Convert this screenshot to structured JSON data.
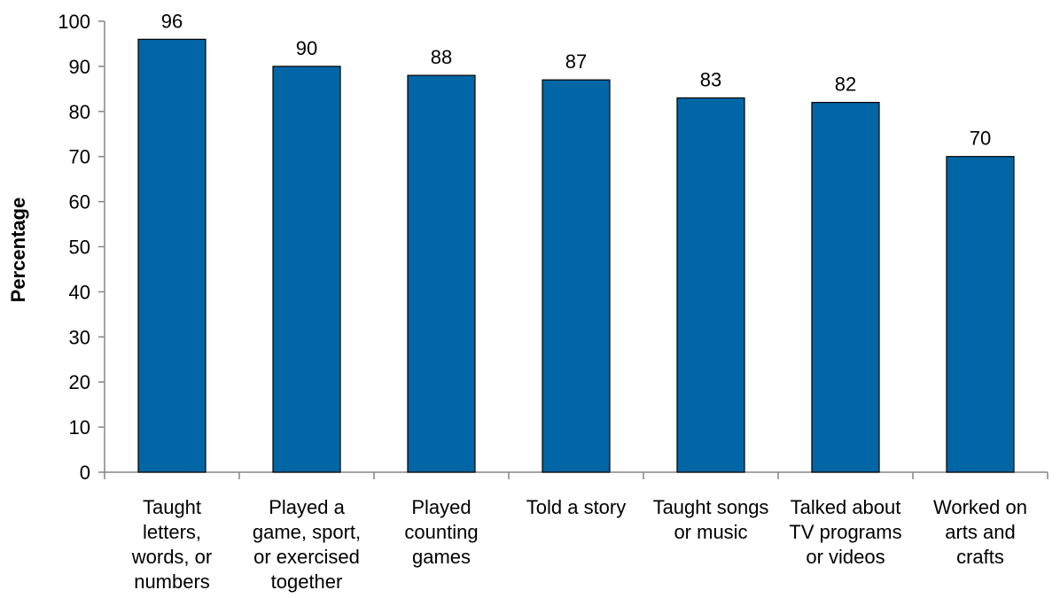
{
  "chart_data": {
    "type": "bar",
    "title": "",
    "xlabel": "",
    "ylabel": "Percentage",
    "ylim": [
      0,
      100
    ],
    "yticks": [
      0,
      10,
      20,
      30,
      40,
      50,
      60,
      70,
      80,
      90,
      100
    ],
    "grid": false,
    "legend": "none",
    "bar_color": "#0066a6",
    "categories": [
      [
        "Taught",
        "letters,",
        "words, or",
        "numbers"
      ],
      [
        "Played a",
        "game, sport,",
        "or exercised",
        "together"
      ],
      [
        "Played",
        "counting",
        "games"
      ],
      [
        "Told a story"
      ],
      [
        "Taught songs",
        "or music"
      ],
      [
        "Talked about",
        "TV programs",
        "or videos"
      ],
      [
        "Worked on",
        "arts and",
        "crafts"
      ]
    ],
    "values": [
      96,
      90,
      88,
      87,
      83,
      82,
      70
    ]
  }
}
